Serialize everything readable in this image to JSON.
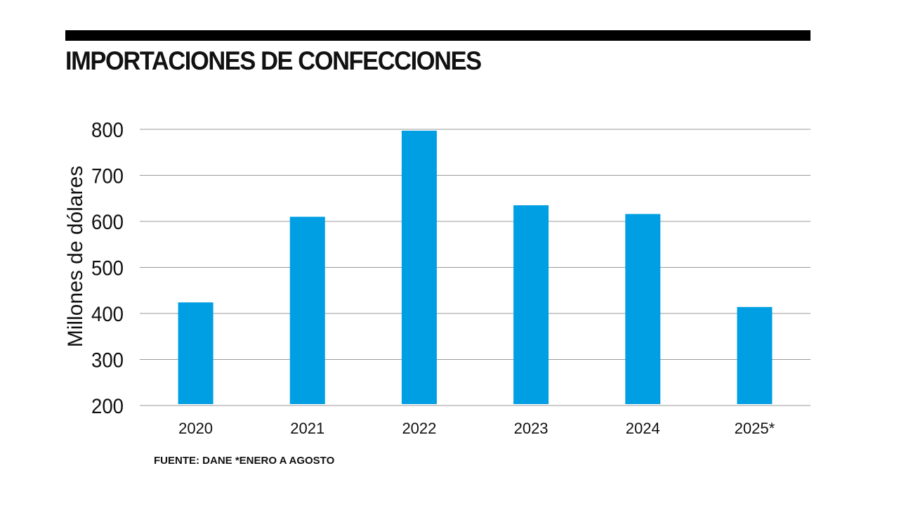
{
  "header": {
    "title": "IMPORTACIONES DE CONFECCIONES"
  },
  "footer": {
    "source": "FUENTE: DANE *ENERO A AGOSTO"
  },
  "colors": {
    "bar": "#009fe3",
    "grid": "#9a9a9a",
    "rule": "#000000"
  },
  "chart_data": {
    "type": "bar",
    "title": "IMPORTACIONES DE CONFECCIONES",
    "xlabel": "",
    "ylabel": "Millones de dólares",
    "categories": [
      "2020",
      "2021",
      "2022",
      "2023",
      "2024",
      "2025*"
    ],
    "values": [
      424,
      610,
      797,
      635,
      616,
      414
    ],
    "ylim": [
      200,
      800
    ],
    "yticks": [
      "200",
      "300",
      "400",
      "500",
      "600",
      "700",
      "800"
    ],
    "grid": true
  }
}
